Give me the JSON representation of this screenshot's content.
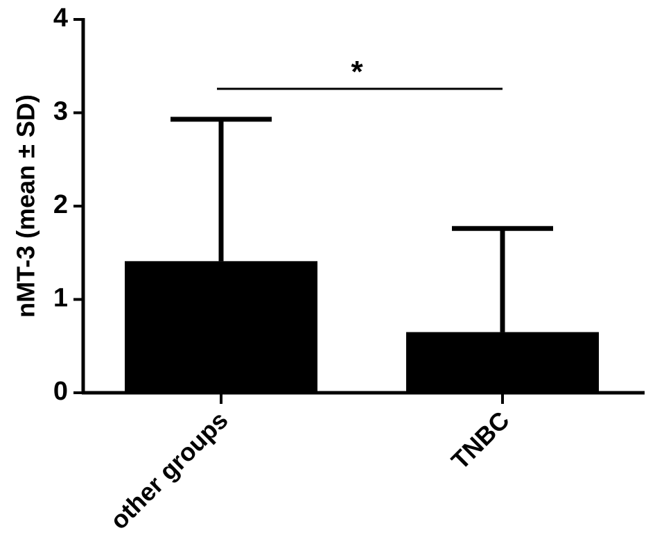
{
  "chart_data": {
    "type": "bar",
    "y_label": "nMT-3 (mean ± SD)",
    "categories": [
      "other groups",
      "TNBC"
    ],
    "values": [
      1.41,
      0.65
    ],
    "errors": [
      1.52,
      1.11
    ],
    "color": "#000000",
    "ylim": [
      0,
      4
    ],
    "yticks": [
      0,
      1,
      2,
      3,
      4
    ],
    "grid": false,
    "annotation": "*"
  }
}
